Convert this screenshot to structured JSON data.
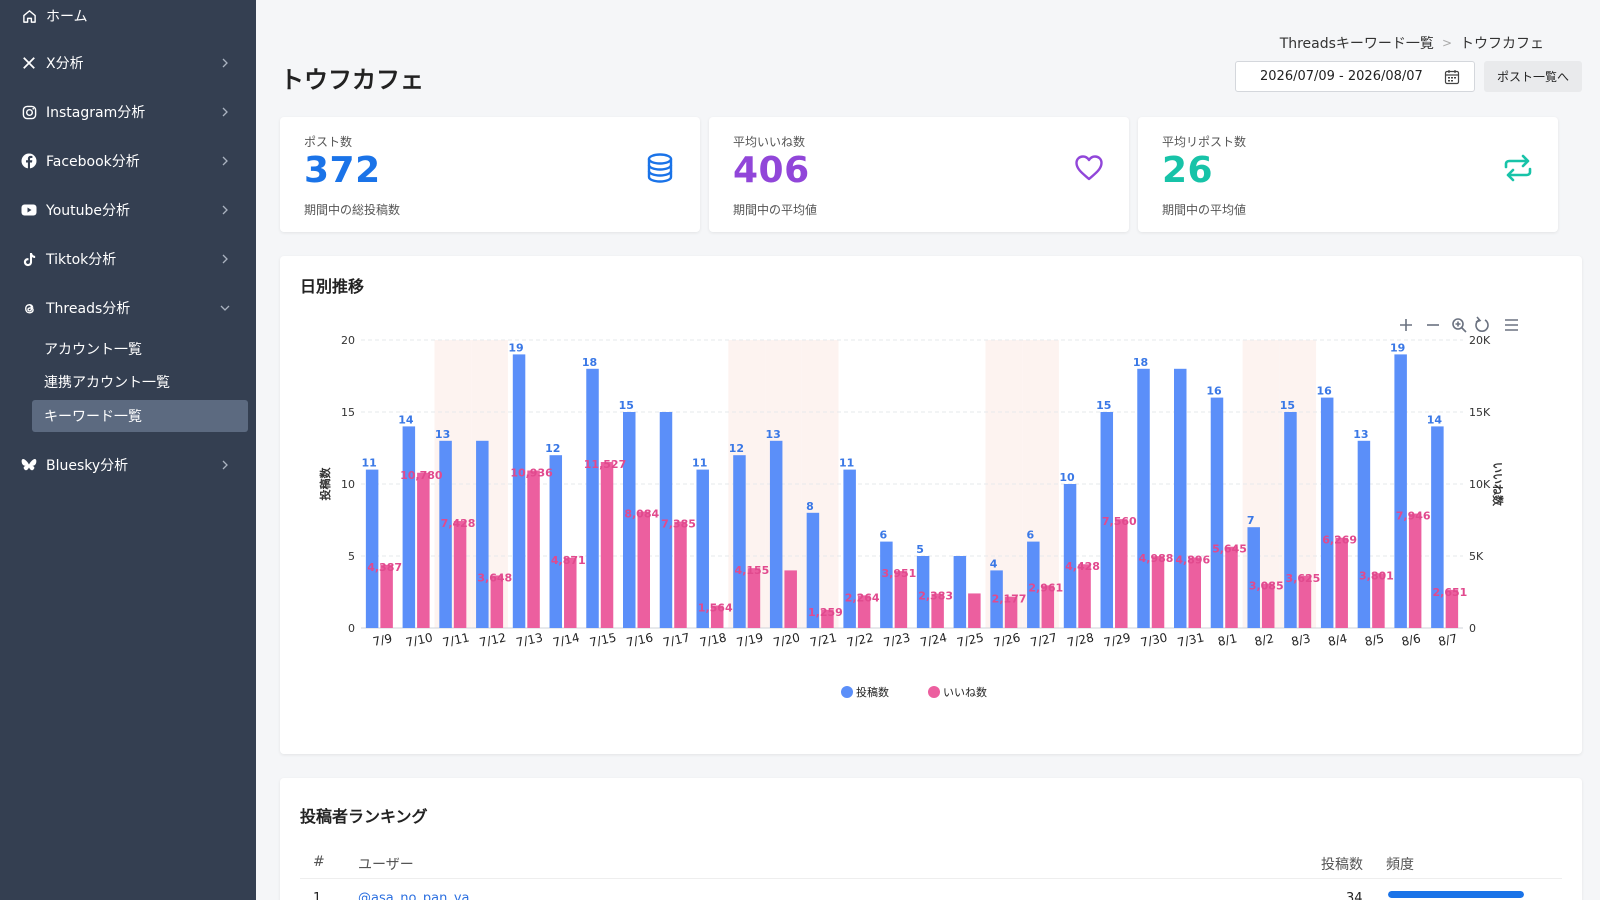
{
  "colors": {
    "sidebar_bg": "#343f51",
    "blue": "#1a73e8",
    "purple": "#9146d9",
    "teal": "#17c3a8",
    "bar_posts": "#5b8ff9",
    "bar_likes": "#ec5f9f"
  },
  "sidebar": {
    "home": {
      "label": "ホーム",
      "icon": "home-icon"
    },
    "items": [
      {
        "label": "X分析",
        "icon": "x-logo-icon"
      },
      {
        "label": "Instagram分析",
        "icon": "instagram-icon"
      },
      {
        "label": "Facebook分析",
        "icon": "facebook-icon"
      },
      {
        "label": "Youtube分析",
        "icon": "youtube-icon"
      },
      {
        "label": "Tiktok分析",
        "icon": "tiktok-icon"
      },
      {
        "label": "Threads分析",
        "icon": "threads-icon"
      }
    ],
    "threads_sub": [
      {
        "label": "アカウント一覧"
      },
      {
        "label": "連携アカウント一覧"
      },
      {
        "label": "キーワード一覧"
      }
    ],
    "bluesky": {
      "label": "Bluesky分析",
      "icon": "bluesky-icon"
    }
  },
  "header": {
    "breadcrumb_parent": "Threadsキーワード一覧",
    "breadcrumb_current": "トウフカフェ",
    "title": "トウフカフェ",
    "date_range": "2026/07/09 - 2026/08/07",
    "post_list_button": "ポスト一覧へ"
  },
  "stats": [
    {
      "label": "ポスト数",
      "value": "372",
      "sub": "期間中の総投稿数",
      "icon": "database-icon",
      "color": "#1a73e8"
    },
    {
      "label": "平均いいね数",
      "value": "406",
      "sub": "期間中の平均値",
      "icon": "heart-icon",
      "color": "#9146d9"
    },
    {
      "label": "平均リポスト数",
      "value": "26",
      "sub": "期間中の平均値",
      "icon": "repost-icon",
      "color": "#17c3a8"
    }
  ],
  "daily": {
    "title": "日別推移",
    "toolbar": [
      "zoom-in-icon",
      "zoom-out-icon",
      "magnify-icon",
      "reset-icon",
      "menu-icon"
    ]
  },
  "chart_data": {
    "type": "bar",
    "categories": [
      "7/9",
      "7/10",
      "7/11",
      "7/12",
      "7/13",
      "7/14",
      "7/15",
      "7/16",
      "7/17",
      "7/18",
      "7/19",
      "7/20",
      "7/21",
      "7/22",
      "7/23",
      "7/24",
      "7/25",
      "7/26",
      "7/27",
      "7/28",
      "7/29",
      "7/30",
      "7/31",
      "8/1",
      "8/2",
      "8/3",
      "8/4",
      "8/5",
      "8/6",
      "8/7"
    ],
    "series": [
      {
        "name": "投稿数",
        "axis": "left",
        "color": "#5b8ff9",
        "values": [
          11,
          14,
          13,
          13,
          19,
          12,
          18,
          15,
          15,
          11,
          12,
          13,
          8,
          11,
          6,
          5,
          5,
          4,
          6,
          10,
          15,
          18,
          18,
          16,
          7,
          15,
          16,
          13,
          19,
          14
        ],
        "labels": [
          "11",
          "14",
          "13",
          "",
          "19",
          "12",
          "18",
          "15",
          "",
          "11",
          "12",
          "13",
          "8",
          "11",
          "6",
          "5",
          "",
          "4",
          "6",
          "10",
          "15",
          "18",
          "",
          "16",
          "7",
          "15",
          "16",
          "13",
          "19",
          "14"
        ]
      },
      {
        "name": "いいね数",
        "axis": "right",
        "color": "#ec5f9f",
        "values": [
          4387,
          10780,
          7428,
          3648,
          10936,
          4871,
          11527,
          8084,
          7385,
          1564,
          4155,
          4000,
          1259,
          2264,
          3951,
          2383,
          2400,
          2177,
          2961,
          4428,
          7560,
          4988,
          4896,
          5645,
          3085,
          3625,
          6269,
          3801,
          7946,
          2651
        ],
        "labels": [
          "4,387",
          "10,780",
          "7,428",
          "3,648",
          "10,936",
          "4,871",
          "11,527",
          "8,084",
          "7,385",
          "1,564",
          "4,155",
          "",
          "1,259",
          "2,264",
          "3,951",
          "2,383",
          "",
          "2,177",
          "2,961",
          "4,428",
          "7,560",
          "4,988",
          "4,896",
          "5,645",
          "3,085",
          "3,625",
          "6,269",
          "3,801",
          "7,946",
          "2,651"
        ]
      }
    ],
    "highlight_bands": [
      2,
      3,
      10,
      11,
      12,
      17,
      18,
      24,
      25
    ],
    "ylabel_left": "投稿数",
    "ylabel_right": "いいね数",
    "ylim_left": [
      0,
      20
    ],
    "ylim_right": [
      0,
      20000
    ],
    "yticks_left": [
      "0",
      "5",
      "10",
      "15",
      "20"
    ],
    "yticks_right": [
      "0",
      "5K",
      "10K",
      "15K",
      "20K"
    ],
    "grid": true,
    "legend_position": "bottom-center"
  },
  "ranking": {
    "title": "投稿者ランキング",
    "headers": {
      "rank": "#",
      "user": "ユーザー",
      "posts": "投稿数",
      "freq": "頻度"
    },
    "rows": [
      {
        "rank": "1",
        "user": "@asa_no_pan_ya",
        "posts": "34",
        "freq": 1.0
      }
    ]
  }
}
